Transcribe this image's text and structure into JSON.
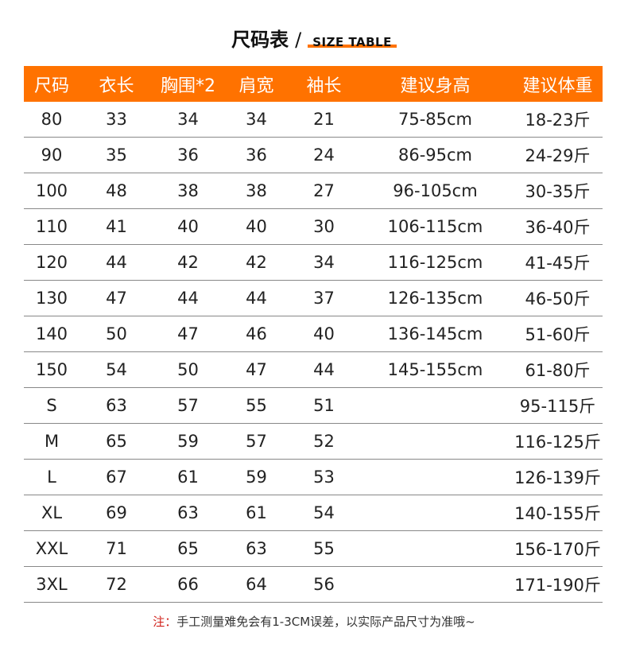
{
  "title": {
    "cn": "尺码表",
    "slash": "/",
    "en": "SIZE TABLE"
  },
  "accent": "#ff7200",
  "headers": [
    "尺码",
    "衣长",
    "胸围*2",
    "肩宽",
    "袖长",
    "建议身高",
    "建议体重"
  ],
  "rows": [
    [
      "80",
      "33",
      "34",
      "34",
      "21",
      "75-85cm",
      "18-23斤"
    ],
    [
      "90",
      "35",
      "36",
      "36",
      "24",
      "86-95cm",
      "24-29斤"
    ],
    [
      "100",
      "48",
      "38",
      "38",
      "27",
      "96-105cm",
      "30-35斤"
    ],
    [
      "110",
      "41",
      "40",
      "40",
      "30",
      "106-115cm",
      "36-40斤"
    ],
    [
      "120",
      "44",
      "42",
      "42",
      "34",
      "116-125cm",
      "41-45斤"
    ],
    [
      "130",
      "47",
      "44",
      "44",
      "37",
      "126-135cm",
      "46-50斤"
    ],
    [
      "140",
      "50",
      "47",
      "46",
      "40",
      "136-145cm",
      "51-60斤"
    ],
    [
      "150",
      "54",
      "50",
      "47",
      "44",
      "145-155cm",
      "61-80斤"
    ],
    [
      "S",
      "63",
      "57",
      "55",
      "51",
      "",
      "95-115斤"
    ],
    [
      "M",
      "65",
      "59",
      "57",
      "52",
      "",
      "116-125斤"
    ],
    [
      "L",
      "67",
      "61",
      "59",
      "53",
      "",
      "126-139斤"
    ],
    [
      "XL",
      "69",
      "63",
      "61",
      "54",
      "",
      "140-155斤"
    ],
    [
      "XXL",
      "71",
      "65",
      "63",
      "55",
      "",
      "156-170斤"
    ],
    [
      "3XL",
      "72",
      "66",
      "64",
      "56",
      "",
      "171-190斤"
    ]
  ],
  "note": {
    "label": "注：",
    "text": "手工测量难免会有1-3CM误差，以实际产品尺寸为准哦~"
  }
}
